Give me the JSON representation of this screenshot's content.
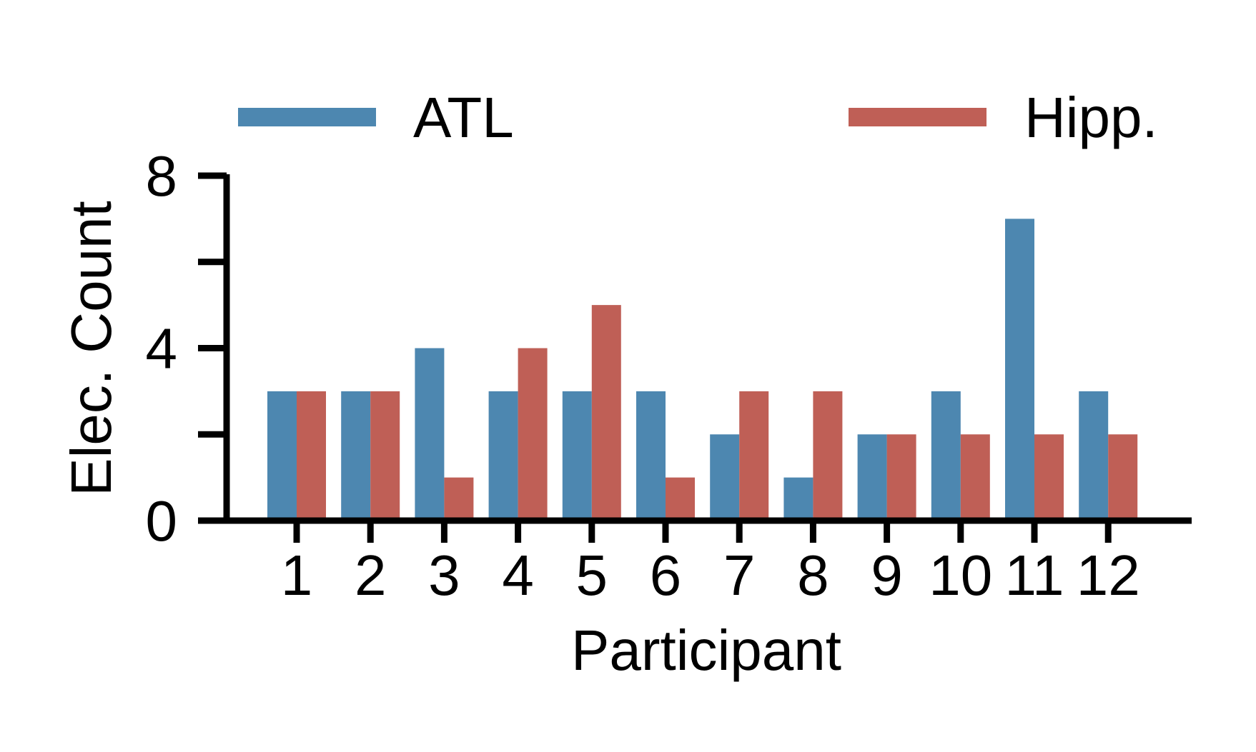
{
  "chart_data": {
    "type": "bar",
    "title": "",
    "xlabel": "Participant",
    "ylabel": "Elec. Count",
    "categories": [
      "1",
      "2",
      "3",
      "4",
      "5",
      "6",
      "7",
      "8",
      "9",
      "10",
      "11",
      "12"
    ],
    "series": [
      {
        "name": "ATL",
        "color": "#4d87b0",
        "values": [
          3,
          3,
          4,
          3,
          3,
          3,
          2,
          1,
          2,
          3,
          7,
          3
        ]
      },
      {
        "name": "Hipp.",
        "color": "#bf5f56",
        "values": [
          3,
          3,
          1,
          4,
          5,
          1,
          3,
          3,
          2,
          2,
          2,
          2
        ]
      }
    ],
    "ylim": [
      0,
      8
    ],
    "yticks": [
      0,
      2,
      4,
      6,
      8
    ],
    "ytick_labels": [
      "0",
      "",
      "4",
      "",
      "8"
    ],
    "grid": false,
    "legend": "top"
  }
}
